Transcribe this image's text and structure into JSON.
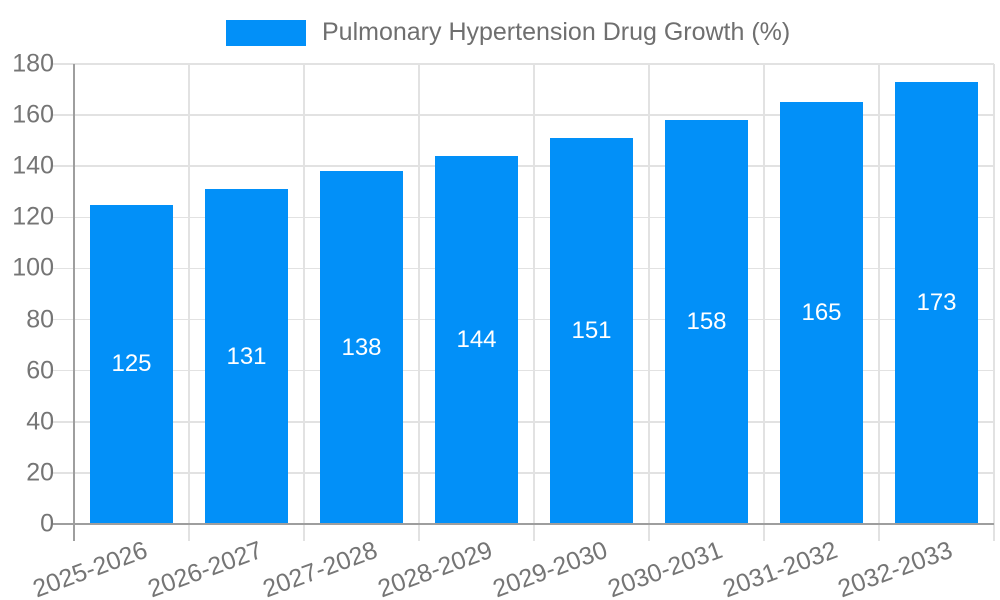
{
  "legend": {
    "label": "Pulmonary Hypertension Drug Growth (%)"
  },
  "colors": {
    "bar": "#0290f8",
    "axis": "#9e9e9e",
    "gridline": "#e2e2e2",
    "tick_text": "#757575",
    "legend_text": "#6f6f6f",
    "value_label_text": "#ffffff"
  },
  "chart_data": {
    "type": "bar",
    "title": "Pulmonary Hypertension Drug Growth (%)",
    "categories": [
      "2025-2026",
      "2026-2027",
      "2027-2028",
      "2028-2029",
      "2029-2030",
      "2030-2031",
      "2031-2032",
      "2032-2033"
    ],
    "values": [
      125,
      131,
      138,
      144,
      151,
      158,
      165,
      173
    ],
    "value_labels": [
      "125",
      "131",
      "138",
      "144",
      "151",
      "158",
      "165",
      "173"
    ],
    "xlabel": "",
    "ylabel": "",
    "ylim": [
      0,
      180
    ],
    "yticks": [
      0,
      20,
      40,
      60,
      80,
      100,
      120,
      140,
      160,
      180
    ],
    "grid": true,
    "legend_position": "top",
    "bar_color": "#0290f8",
    "value_label_position": "inside-middle",
    "xtick_rotation_deg": -20
  }
}
